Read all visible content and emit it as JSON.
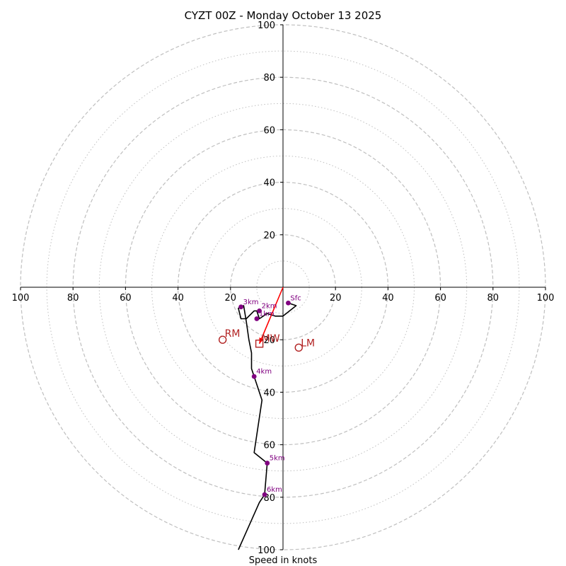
{
  "chart_data": {
    "type": "hodograph",
    "title": "CYZT 00Z - Monday October 13 2025",
    "xlabel": "Speed in knots",
    "units": "knots",
    "range": [
      -100,
      100
    ],
    "major_rings": [
      20,
      40,
      60,
      80,
      100
    ],
    "minor_rings": [
      10,
      30,
      50,
      70,
      90
    ],
    "x_tick_labels": [
      {
        "value": -100,
        "label": "100"
      },
      {
        "value": -80,
        "label": "80"
      },
      {
        "value": -60,
        "label": "60"
      },
      {
        "value": -40,
        "label": "40"
      },
      {
        "value": -20,
        "label": "20"
      },
      {
        "value": 20,
        "label": "20"
      },
      {
        "value": 40,
        "label": "40"
      },
      {
        "value": 60,
        "label": "60"
      },
      {
        "value": 80,
        "label": "80"
      },
      {
        "value": 100,
        "label": "100"
      }
    ],
    "y_tick_labels": [
      {
        "value": 100,
        "label": "100"
      },
      {
        "value": 80,
        "label": "80"
      },
      {
        "value": 60,
        "label": "60"
      },
      {
        "value": 40,
        "label": "40"
      },
      {
        "value": 20,
        "label": "20"
      },
      {
        "value": -20,
        "label": "20"
      },
      {
        "value": -40,
        "label": "40"
      },
      {
        "value": -60,
        "label": "60"
      },
      {
        "value": -80,
        "label": "80"
      },
      {
        "value": -100,
        "label": "100"
      }
    ],
    "profile": [
      {
        "u": 2,
        "v": -6
      },
      {
        "u": 5,
        "v": -7
      },
      {
        "u": 0,
        "v": -11
      },
      {
        "u": -3,
        "v": -11
      },
      {
        "u": -6,
        "v": -10
      },
      {
        "u": -9,
        "v": -12
      },
      {
        "u": -10,
        "v": -9
      },
      {
        "u": -11,
        "v": -9
      },
      {
        "u": -14,
        "v": -12
      },
      {
        "u": -16,
        "v": -12
      },
      {
        "u": -17,
        "v": -8
      },
      {
        "u": -15,
        "v": -7
      },
      {
        "u": -14,
        "v": -13
      },
      {
        "u": -13,
        "v": -20
      },
      {
        "u": -12,
        "v": -25
      },
      {
        "u": -12,
        "v": -31
      },
      {
        "u": -11,
        "v": -34
      },
      {
        "u": -8,
        "v": -43
      },
      {
        "u": -11,
        "v": -63
      },
      {
        "u": -6,
        "v": -67
      },
      {
        "u": -7,
        "v": -79
      },
      {
        "u": -9,
        "v": -82
      },
      {
        "u": -17,
        "v": -100
      }
    ],
    "height_markers": [
      {
        "label": "Sfc",
        "u": 2,
        "v": -6
      },
      {
        "label": "1km",
        "u": -10,
        "v": -12
      },
      {
        "label": "2km",
        "u": -9,
        "v": -9
      },
      {
        "label": "3km",
        "u": -16,
        "v": -7.5
      },
      {
        "label": "4km",
        "u": -11,
        "v": -34
      },
      {
        "label": "5km",
        "u": -6,
        "v": -67
      },
      {
        "label": "6km",
        "u": -7,
        "v": -79
      }
    ],
    "storm_motion": {
      "RM": {
        "label": "RM",
        "u": -23,
        "v": -20
      },
      "LM": {
        "label": "LM",
        "u": 6,
        "v": -23
      },
      "MW": {
        "label": "MW",
        "u": -9,
        "v": -21.5
      }
    },
    "shear_vector": {
      "from": {
        "u": 0,
        "v": 0
      },
      "to": {
        "u": -9,
        "v": -21.5
      }
    },
    "colors": {
      "profile": "#000000",
      "markers": "#800080",
      "storm_motion": "#b22222",
      "shear_vector": "#ff0000",
      "rings": "#bfbfbf",
      "axes": "#000000"
    }
  }
}
